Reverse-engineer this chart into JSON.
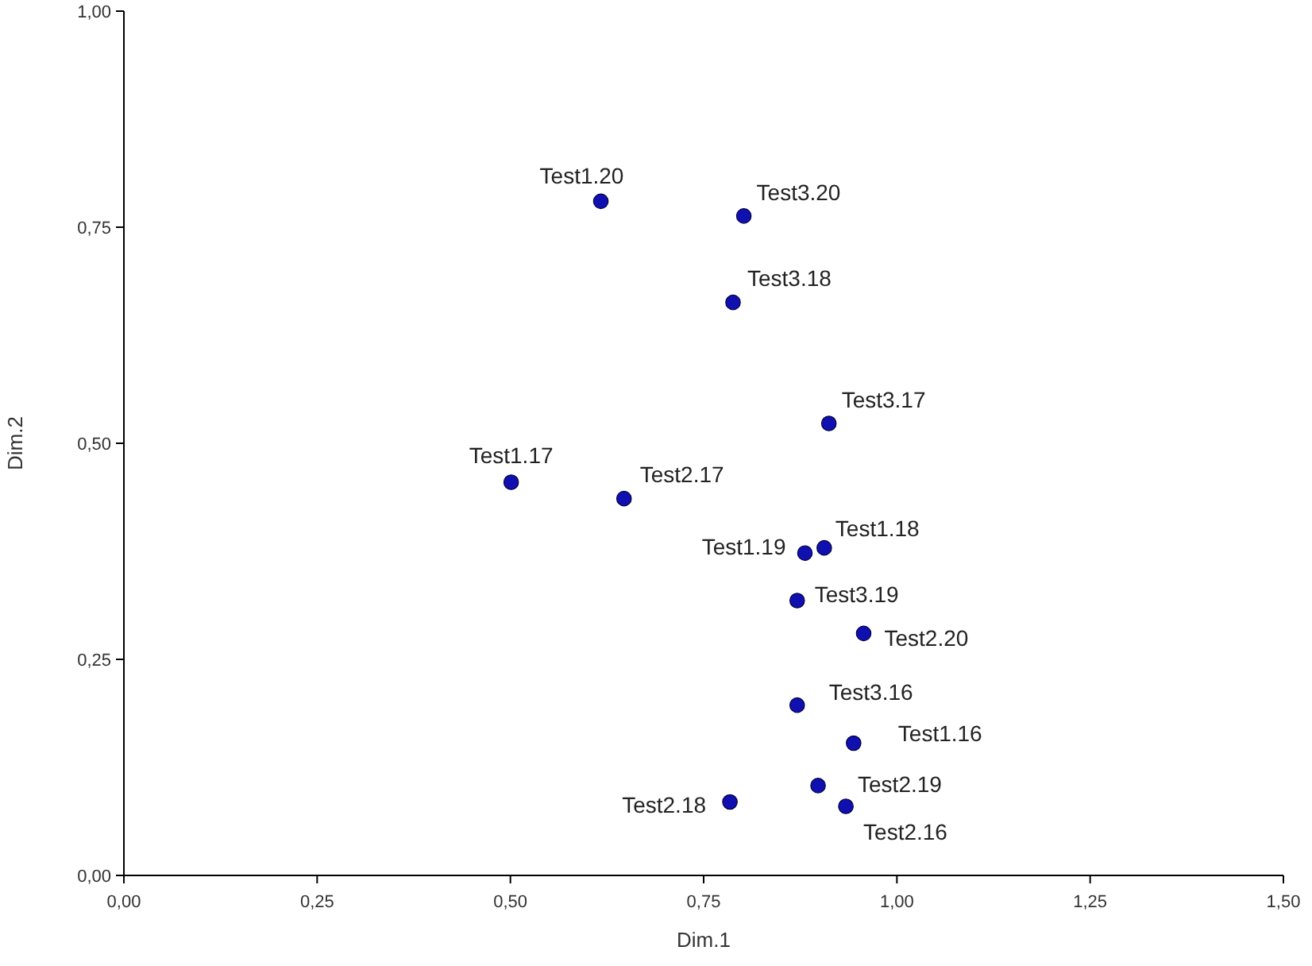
{
  "chart_data": {
    "type": "scatter",
    "xlabel": "Dim.1",
    "ylabel": "Dim.2",
    "x": [
      0.617,
      0.802,
      0.788,
      0.912,
      0.501,
      0.647,
      0.881,
      0.906,
      0.871,
      0.957,
      0.871,
      0.944,
      0.898,
      0.934,
      0.784
    ],
    "series": [
      {
        "color": "#1010b0",
        "values": [
          0.78,
          0.763,
          0.663,
          0.523,
          0.455,
          0.436,
          0.373,
          0.379,
          0.318,
          0.28,
          0.197,
          0.153,
          0.104,
          0.08,
          0.085
        ]
      }
    ],
    "annotations": [
      {
        "text": "Test1.20",
        "x": 0.617,
        "y": 0.78
      },
      {
        "text": "Test3.20",
        "x": 0.802,
        "y": 0.763
      },
      {
        "text": "Test3.18",
        "x": 0.788,
        "y": 0.663
      },
      {
        "text": "Test3.17",
        "x": 0.912,
        "y": 0.523
      },
      {
        "text": "Test1.17",
        "x": 0.501,
        "y": 0.455
      },
      {
        "text": "Test2.17",
        "x": 0.647,
        "y": 0.436
      },
      {
        "text": "Test1.19",
        "x": 0.881,
        "y": 0.373
      },
      {
        "text": "Test1.18",
        "x": 0.906,
        "y": 0.379
      },
      {
        "text": "Test3.19",
        "x": 0.871,
        "y": 0.318
      },
      {
        "text": "Test2.20",
        "x": 0.957,
        "y": 0.28
      },
      {
        "text": "Test3.16",
        "x": 0.871,
        "y": 0.197
      },
      {
        "text": "Test1.16",
        "x": 0.944,
        "y": 0.153
      },
      {
        "text": "Test2.19",
        "x": 0.898,
        "y": 0.104
      },
      {
        "text": "Test2.16",
        "x": 0.934,
        "y": 0.08
      },
      {
        "text": "Test2.18",
        "x": 0.784,
        "y": 0.085
      }
    ],
    "xlim": [
      0,
      1.5
    ],
    "ylim": [
      0,
      1
    ],
    "xticks": [
      {
        "value": 0,
        "label": "0,00"
      },
      {
        "value": 0.25,
        "label": "0,25"
      },
      {
        "value": 0.5,
        "label": "0,50"
      },
      {
        "value": 0.75,
        "label": "0,75"
      },
      {
        "value": 1,
        "label": "1,00"
      },
      {
        "value": 1.25,
        "label": "1,25"
      },
      {
        "value": 1.5,
        "label": "1,50"
      }
    ],
    "yticks": [
      {
        "value": 0,
        "label": "0,00"
      },
      {
        "value": 0.25,
        "label": "0,25"
      },
      {
        "value": 0.5,
        "label": "0,50"
      },
      {
        "value": 0.75,
        "label": "0,75"
      },
      {
        "value": 1,
        "label": "1,00"
      }
    ],
    "grid": false,
    "marker": "circle"
  }
}
